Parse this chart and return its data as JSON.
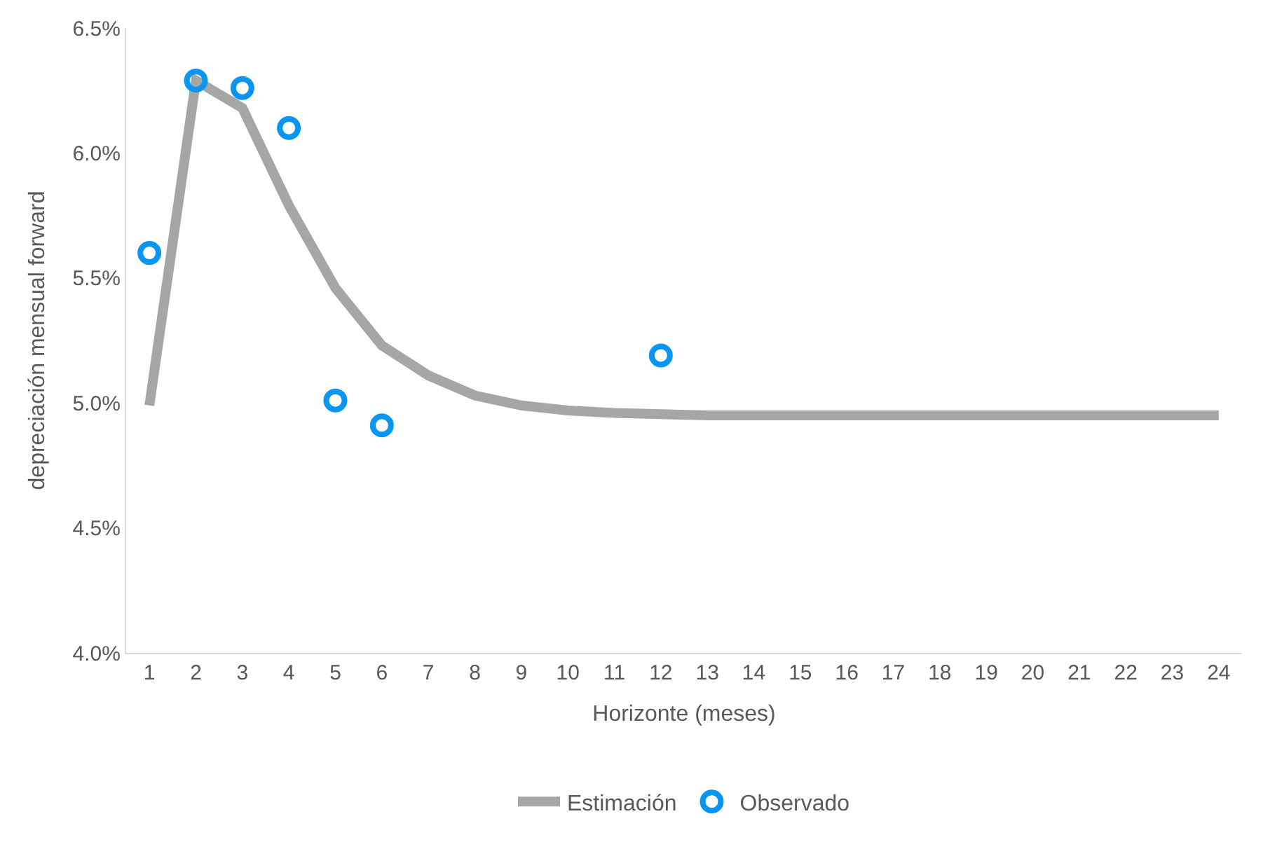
{
  "chart_data": {
    "type": "line",
    "xlabel": "Horizonte (meses)",
    "ylabel": "depreciación mensual forward",
    "x": [
      1,
      2,
      3,
      4,
      5,
      6,
      7,
      8,
      9,
      10,
      11,
      12,
      13,
      14,
      15,
      16,
      17,
      18,
      19,
      20,
      21,
      22,
      23,
      24
    ],
    "series": [
      {
        "name": "Estimación",
        "color": "#a6a6a6",
        "marker": "none",
        "line_style": "solid",
        "values": [
          4.99,
          6.29,
          6.18,
          5.79,
          5.46,
          5.23,
          5.11,
          5.03,
          4.99,
          4.97,
          4.96,
          4.955,
          4.95,
          4.95,
          4.95,
          4.95,
          4.95,
          4.95,
          4.95,
          4.95,
          4.95,
          4.95,
          4.95,
          4.95
        ]
      },
      {
        "name": "Observado",
        "color": "#0a96f0",
        "type": "scatter",
        "marker": "circle",
        "x": [
          1,
          2,
          3,
          4,
          5,
          6,
          12
        ],
        "values": [
          5.6,
          6.29,
          6.26,
          6.1,
          5.01,
          4.91,
          5.19
        ]
      }
    ],
    "xlim": [
      0.5,
      24.5
    ],
    "xticks": [
      1,
      2,
      3,
      4,
      5,
      6,
      7,
      8,
      9,
      10,
      11,
      12,
      13,
      14,
      15,
      16,
      17,
      18,
      19,
      20,
      21,
      22,
      23,
      24
    ],
    "ylim": [
      4.0,
      6.5
    ],
    "yticks": [
      {
        "value": 4.0,
        "label": "4.0%"
      },
      {
        "value": 4.5,
        "label": "4.5%"
      },
      {
        "value": 5.0,
        "label": "5.0%"
      },
      {
        "value": 5.5,
        "label": "5.5%"
      },
      {
        "value": 6.0,
        "label": "6.0%"
      },
      {
        "value": 6.5,
        "label": "6.5%"
      }
    ],
    "grid": false,
    "legend": "bottom"
  }
}
